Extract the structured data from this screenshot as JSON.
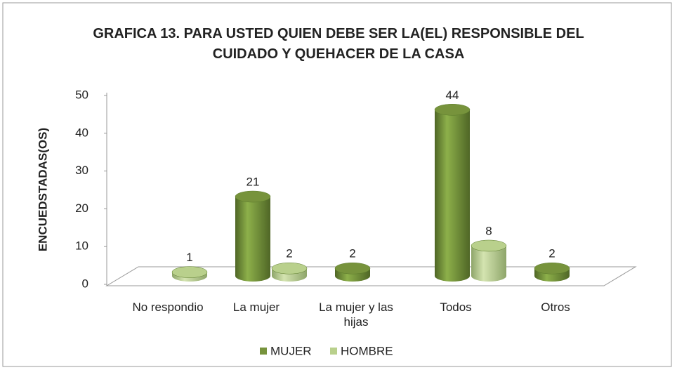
{
  "chart_data": {
    "type": "bar3d",
    "title": "GRAFICA 13. PARA USTED QUIEN DEBE SER LA(EL) RESPONSIBLE DEL CUIDADO Y QUEHACER DE LA CASA",
    "y_label": "ENCUEDSTADAS(OS)",
    "categories": [
      "No respondio",
      "La mujer",
      "La mujer y las hijas",
      "Todos",
      "Otros"
    ],
    "series": [
      {
        "name": "MUJER",
        "color": "#77933c",
        "values": [
          null,
          21,
          2,
          44,
          2
        ]
      },
      {
        "name": "HOMBRE",
        "color": "#b9d08c",
        "values": [
          1,
          2,
          null,
          8,
          null
        ]
      }
    ],
    "ylim": [
      0,
      50
    ],
    "yticks": [
      0,
      10,
      20,
      30,
      40,
      50
    ],
    "legend": "bottom"
  }
}
